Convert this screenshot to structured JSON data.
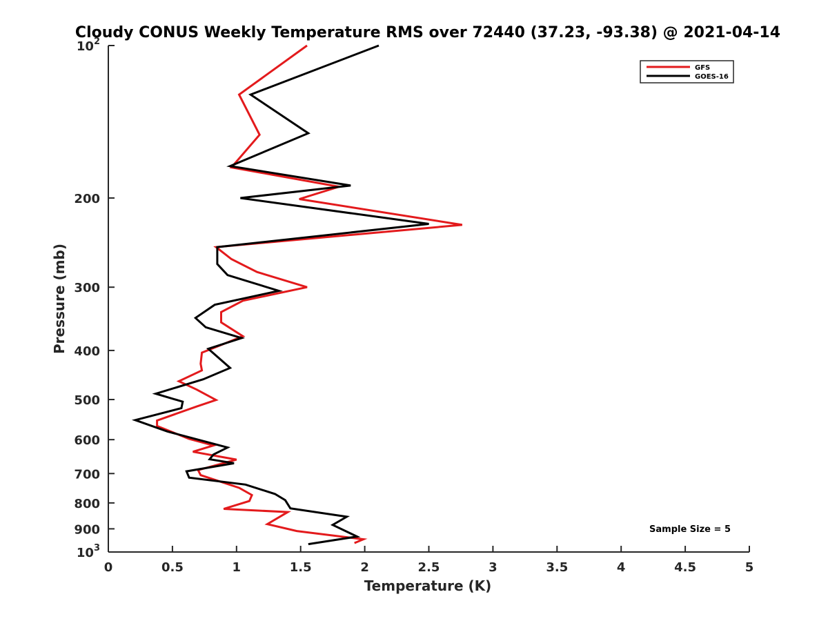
{
  "chart_data": {
    "type": "line",
    "title": "Cloudy CONUS Weekly Temperature RMS over 72440 (37.23, -93.38) @ 2021-04-14",
    "xlabel": "Temperature (K)",
    "ylabel": "Pressure (mb)",
    "xlim": [
      0,
      5
    ],
    "ylim": [
      100,
      1000
    ],
    "y_scale": "log",
    "y_reversed": true,
    "grid": false,
    "legend_position": "top-right",
    "x_ticks": [
      {
        "value": 0,
        "label": "0"
      },
      {
        "value": 0.5,
        "label": "0.5"
      },
      {
        "value": 1,
        "label": "1"
      },
      {
        "value": 1.5,
        "label": "1.5"
      },
      {
        "value": 2,
        "label": "2"
      },
      {
        "value": 2.5,
        "label": "2.5"
      },
      {
        "value": 3,
        "label": "3"
      },
      {
        "value": 3.5,
        "label": "3.5"
      },
      {
        "value": 4,
        "label": "4"
      },
      {
        "value": 4.5,
        "label": "4.5"
      },
      {
        "value": 5,
        "label": "5"
      }
    ],
    "y_ticks": [
      {
        "value": 100,
        "base": "10",
        "exp": "2"
      },
      {
        "value": 200,
        "label": "200"
      },
      {
        "value": 300,
        "label": "300"
      },
      {
        "value": 400,
        "label": "400"
      },
      {
        "value": 500,
        "label": "500"
      },
      {
        "value": 600,
        "label": "600"
      },
      {
        "value": 700,
        "label": "700"
      },
      {
        "value": 800,
        "label": "800"
      },
      {
        "value": 900,
        "label": "900"
      },
      {
        "value": 1000,
        "base": "10",
        "exp": "3"
      }
    ],
    "series": [
      {
        "name": "GFS",
        "color": "#e31a1c",
        "points": [
          {
            "x": 1.55,
            "y": 100
          },
          {
            "x": 1.02,
            "y": 125
          },
          {
            "x": 1.18,
            "y": 150
          },
          {
            "x": 0.96,
            "y": 174
          },
          {
            "x": 1.8,
            "y": 190
          },
          {
            "x": 1.49,
            "y": 201
          },
          {
            "x": 2.76,
            "y": 226
          },
          {
            "x": 0.84,
            "y": 250
          },
          {
            "x": 0.96,
            "y": 264
          },
          {
            "x": 1.16,
            "y": 280
          },
          {
            "x": 1.55,
            "y": 300
          },
          {
            "x": 1.05,
            "y": 319
          },
          {
            "x": 0.88,
            "y": 336
          },
          {
            "x": 0.88,
            "y": 352
          },
          {
            "x": 1.05,
            "y": 375
          },
          {
            "x": 0.73,
            "y": 404
          },
          {
            "x": 0.72,
            "y": 425
          },
          {
            "x": 0.73,
            "y": 438
          },
          {
            "x": 0.55,
            "y": 460
          },
          {
            "x": 0.69,
            "y": 478
          },
          {
            "x": 0.84,
            "y": 501
          },
          {
            "x": 0.69,
            "y": 516
          },
          {
            "x": 0.38,
            "y": 550
          },
          {
            "x": 0.38,
            "y": 564
          },
          {
            "x": 0.63,
            "y": 598
          },
          {
            "x": 0.82,
            "y": 616
          },
          {
            "x": 0.66,
            "y": 634
          },
          {
            "x": 1.0,
            "y": 657
          },
          {
            "x": 0.7,
            "y": 689
          },
          {
            "x": 0.72,
            "y": 705
          },
          {
            "x": 1.02,
            "y": 747
          },
          {
            "x": 1.12,
            "y": 772
          },
          {
            "x": 1.1,
            "y": 793
          },
          {
            "x": 0.9,
            "y": 822
          },
          {
            "x": 1.4,
            "y": 834
          },
          {
            "x": 1.24,
            "y": 881
          },
          {
            "x": 1.47,
            "y": 909
          },
          {
            "x": 1.99,
            "y": 944
          },
          {
            "x": 1.92,
            "y": 960
          }
        ]
      },
      {
        "name": "GOES-16",
        "color": "#000000",
        "points": [
          {
            "x": 2.11,
            "y": 100
          },
          {
            "x": 1.11,
            "y": 125
          },
          {
            "x": 1.56,
            "y": 149
          },
          {
            "x": 0.95,
            "y": 173
          },
          {
            "x": 1.89,
            "y": 189
          },
          {
            "x": 1.03,
            "y": 200
          },
          {
            "x": 2.5,
            "y": 225
          },
          {
            "x": 0.85,
            "y": 250
          },
          {
            "x": 0.85,
            "y": 270
          },
          {
            "x": 0.93,
            "y": 284
          },
          {
            "x": 1.33,
            "y": 305
          },
          {
            "x": 0.83,
            "y": 325
          },
          {
            "x": 0.68,
            "y": 345
          },
          {
            "x": 0.76,
            "y": 360
          },
          {
            "x": 1.04,
            "y": 378
          },
          {
            "x": 0.78,
            "y": 397
          },
          {
            "x": 0.95,
            "y": 433
          },
          {
            "x": 0.74,
            "y": 456
          },
          {
            "x": 0.37,
            "y": 487
          },
          {
            "x": 0.58,
            "y": 505
          },
          {
            "x": 0.57,
            "y": 520
          },
          {
            "x": 0.21,
            "y": 549
          },
          {
            "x": 0.46,
            "y": 578
          },
          {
            "x": 0.93,
            "y": 622
          },
          {
            "x": 0.82,
            "y": 642
          },
          {
            "x": 0.79,
            "y": 656
          },
          {
            "x": 0.98,
            "y": 668
          },
          {
            "x": 0.61,
            "y": 693
          },
          {
            "x": 0.63,
            "y": 713
          },
          {
            "x": 1.07,
            "y": 736
          },
          {
            "x": 1.3,
            "y": 768
          },
          {
            "x": 1.38,
            "y": 790
          },
          {
            "x": 1.42,
            "y": 820
          },
          {
            "x": 1.86,
            "y": 852
          },
          {
            "x": 1.75,
            "y": 884
          },
          {
            "x": 1.94,
            "y": 932
          },
          {
            "x": 1.56,
            "y": 965
          }
        ]
      }
    ],
    "annotations": [
      "Sample Size = 5"
    ]
  }
}
